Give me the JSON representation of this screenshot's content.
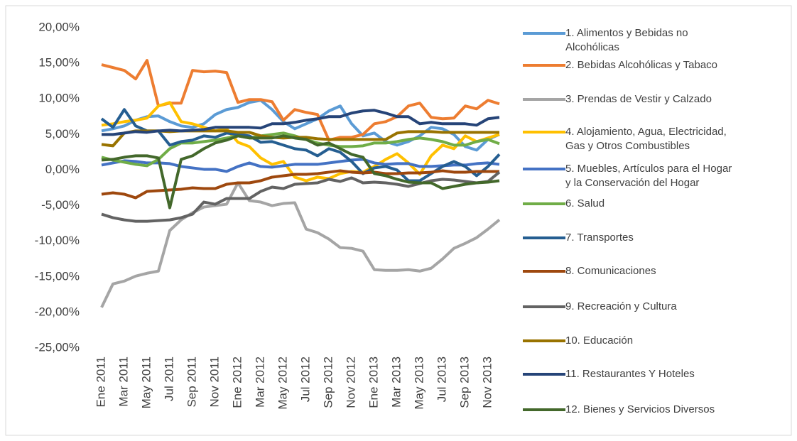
{
  "chart_data": {
    "type": "line",
    "categories": [
      "Ene 2011",
      null,
      "Mar 2011",
      null,
      "May 2011",
      null,
      "Jul 2011",
      null,
      "Sep 2011",
      null,
      "Nov 2011",
      null,
      "Ene 2012",
      null,
      "Mar 2012",
      null,
      "May 2012",
      null,
      "Jul 2012",
      null,
      "Sep 2012",
      null,
      "Nov 2012",
      null,
      "Ene 2013",
      null,
      "Mar 2013",
      null,
      "May 2013",
      null,
      "Jul 2013",
      null,
      "Sep 2013",
      null,
      "Nov 2013",
      null
    ],
    "ylim": [
      -25,
      20
    ],
    "yticks": [
      {
        "value": 20,
        "label": "20,00%"
      },
      {
        "value": 15,
        "label": "15,00%"
      },
      {
        "value": 10,
        "label": "10,00%"
      },
      {
        "value": 5,
        "label": "5,00%"
      },
      {
        "value": 0,
        "label": "0,00%"
      },
      {
        "value": -5,
        "label": "-5,00%"
      },
      {
        "value": -10,
        "label": "-10,00%"
      },
      {
        "value": -15,
        "label": "-15,00%"
      },
      {
        "value": -20,
        "label": "-20,00%"
      },
      {
        "value": -25,
        "label": "-25,00%"
      }
    ],
    "grid": false,
    "legend": "right",
    "series": [
      {
        "name": "1. Alimentos y Bebidas no Alcohólicas",
        "color": "#5B9BD5",
        "values": [
          5.5,
          5.8,
          6.2,
          7,
          7.5,
          7.6,
          6.8,
          6.2,
          6,
          6.5,
          7.8,
          8.5,
          8.8,
          9.5,
          9.8,
          8.5,
          6.8,
          5.8,
          6.5,
          7.2,
          8.3,
          9,
          6.5,
          4.8,
          5.2,
          4,
          3.5,
          4,
          4.8,
          6,
          5.8,
          5,
          3.3,
          2.8,
          4.3,
          5
        ]
      },
      {
        "name": "2. Bebidas Alcohólicas y Tabaco",
        "color": "#ED7D31",
        "values": [
          14.8,
          14.4,
          14,
          12.8,
          15.4,
          9,
          9.4,
          9.4,
          14,
          13.8,
          13.9,
          13.7,
          9.5,
          9.9,
          9.9,
          9.6,
          7,
          8.5,
          8.1,
          7.8,
          4.2,
          4.6,
          4.6,
          5,
          6.5,
          6.8,
          7.5,
          9,
          9.4,
          7.4,
          7.2,
          7.3,
          9,
          8.6,
          9.8,
          9.3
        ]
      },
      {
        "name": "3. Prendas de Vestir y Calzado",
        "color": "#A5A5A5",
        "values": [
          -19.3,
          -16,
          -15.6,
          -14.9,
          -14.5,
          -14.2,
          -8.5,
          -7,
          -6,
          -5.2,
          -5,
          -4.8,
          -1.8,
          -4.3,
          -4.5,
          -5,
          -4.7,
          -4.6,
          -8.3,
          -8.8,
          -9.7,
          -10.9,
          -11,
          -11.4,
          -14,
          -14.1,
          -14.1,
          -14,
          -14.2,
          -13.8,
          -12.5,
          -11,
          -10.3,
          -9.5,
          -8.3,
          -7
        ]
      },
      {
        "name": "4. Alojamiento, Agua, Electricidad, Gas y Otros Combustibles",
        "color": "#FFC000",
        "values": [
          6.3,
          6.5,
          6.8,
          7,
          7.3,
          9,
          9.5,
          6.8,
          6.5,
          6,
          5.5,
          5.8,
          3.9,
          3.3,
          1.7,
          0.8,
          1.2,
          -1,
          -1.5,
          -1,
          -1.2,
          -0.5,
          -0.2,
          -0.3,
          0.5,
          1.5,
          2.3,
          1,
          -0.6,
          2,
          3.5,
          3,
          4.8,
          4,
          4.5,
          5
        ]
      },
      {
        "name": "5. Muebles, Artículos para el Hogar y la Conservación del Hogar",
        "color": "#4472C4",
        "values": [
          0.7,
          1,
          1.3,
          1.2,
          1,
          1,
          0.9,
          0.5,
          0.3,
          0.1,
          0.1,
          -0.2,
          0.5,
          1,
          0.5,
          0.4,
          0.6,
          0.8,
          0.8,
          0.8,
          1,
          1.2,
          1.4,
          1.5,
          1,
          0.8,
          0.9,
          0.9,
          0.5,
          0.5,
          0.6,
          0.7,
          0.7,
          0.9,
          1,
          0.8
        ]
      },
      {
        "name": "6. Salud",
        "color": "#70AD47",
        "values": [
          1.8,
          1.4,
          1.1,
          0.8,
          0.6,
          1.5,
          3,
          3.8,
          3.8,
          4,
          4.2,
          4.5,
          4.8,
          4.5,
          4.8,
          5,
          5.2,
          4.8,
          4.3,
          3.8,
          3.5,
          3.3,
          3.3,
          3.4,
          3.8,
          3.8,
          4,
          4.3,
          4.5,
          4.3,
          4,
          3.5,
          3.5,
          4,
          4.3,
          3.7
        ]
      },
      {
        "name": "7. Transportes",
        "color": "#255E91",
        "values": [
          7.2,
          6,
          8.5,
          6.2,
          5.5,
          5.5,
          3.5,
          4,
          4.2,
          4.8,
          4.6,
          5.2,
          5,
          4.8,
          3.9,
          4,
          3.5,
          3,
          2.8,
          2,
          3,
          2.5,
          1.2,
          -0.5,
          0.3,
          0.5,
          0,
          -1.5,
          -1.5,
          -0.5,
          0.5,
          1.2,
          0.5,
          -0.8,
          0.5,
          2.2
        ]
      },
      {
        "name": "8. Comunicaciones",
        "color": "#9E480E",
        "values": [
          -3.4,
          -3.2,
          -3.4,
          -3.9,
          -3,
          -2.9,
          -2.8,
          -2.7,
          -2.5,
          -2.6,
          -2.6,
          -2,
          -1.8,
          -1.8,
          -1.5,
          -1,
          -0.8,
          -0.6,
          -0.6,
          -0.5,
          -0.3,
          -0.1,
          -0.3,
          -0.4,
          -0.3,
          -0.5,
          -0.5,
          -0.4,
          -0.4,
          -0.3,
          -0.1,
          -0.3,
          -0.3,
          -0.2,
          -0.2,
          -0.2
        ]
      },
      {
        "name": "9. Recreación y Cultura",
        "color": "#636363",
        "values": [
          -6.2,
          -6.7,
          -7,
          -7.2,
          -7.2,
          -7.1,
          -7,
          -6.7,
          -6.2,
          -4.5,
          -4.8,
          -4,
          -4,
          -4,
          -3,
          -2.4,
          -2.6,
          -2,
          -1.9,
          -1.8,
          -1.3,
          -1.6,
          -1.1,
          -1.8,
          -1.7,
          -1.8,
          -2,
          -2.3,
          -1.9,
          -1.5,
          -1.3,
          -1.4,
          -1.6,
          -1.8,
          -1.6,
          -0.3
        ]
      },
      {
        "name": "10. Educación",
        "color": "#997300",
        "values": [
          3.6,
          3.4,
          5.2,
          5.5,
          5.5,
          5.5,
          5.4,
          5.5,
          5.5,
          5.5,
          5.5,
          5.5,
          5.3,
          5.3,
          4.8,
          4.6,
          4.5,
          4.6,
          4.6,
          4.4,
          4.3,
          4.3,
          4.3,
          4.3,
          4.3,
          4.3,
          5.2,
          5.4,
          5.4,
          5.4,
          5.3,
          5.3,
          5.3,
          5.3,
          5.3,
          5.3
        ]
      },
      {
        "name": "11. Restaurantes Y Hoteles",
        "color": "#264478",
        "values": [
          5,
          5,
          5.2,
          5.4,
          5.3,
          5.5,
          5.6,
          5.5,
          5.6,
          5.7,
          6,
          6,
          6,
          6,
          5.9,
          6.5,
          6.5,
          6.7,
          7,
          7.2,
          7.5,
          7.5,
          8,
          8.3,
          8.4,
          8,
          7.5,
          7.5,
          6.5,
          6.7,
          6.5,
          6.5,
          6.5,
          6.3,
          7.2,
          7.4
        ]
      },
      {
        "name": "12. Bienes y Servicios Diversos",
        "color": "#43682B",
        "values": [
          1.4,
          1.5,
          1.8,
          2,
          2,
          1.7,
          -5.3,
          1.5,
          2,
          3,
          3.8,
          4.2,
          4.8,
          4.5,
          4.5,
          4.5,
          4.8,
          4.5,
          4.3,
          3.5,
          3.8,
          3,
          2.2,
          1.8,
          -0.5,
          -0.8,
          -1.3,
          -1.7,
          -1.8,
          -1.8,
          -2.6,
          -2.3,
          -2,
          -1.8,
          -1.7,
          -1.5
        ]
      }
    ]
  }
}
